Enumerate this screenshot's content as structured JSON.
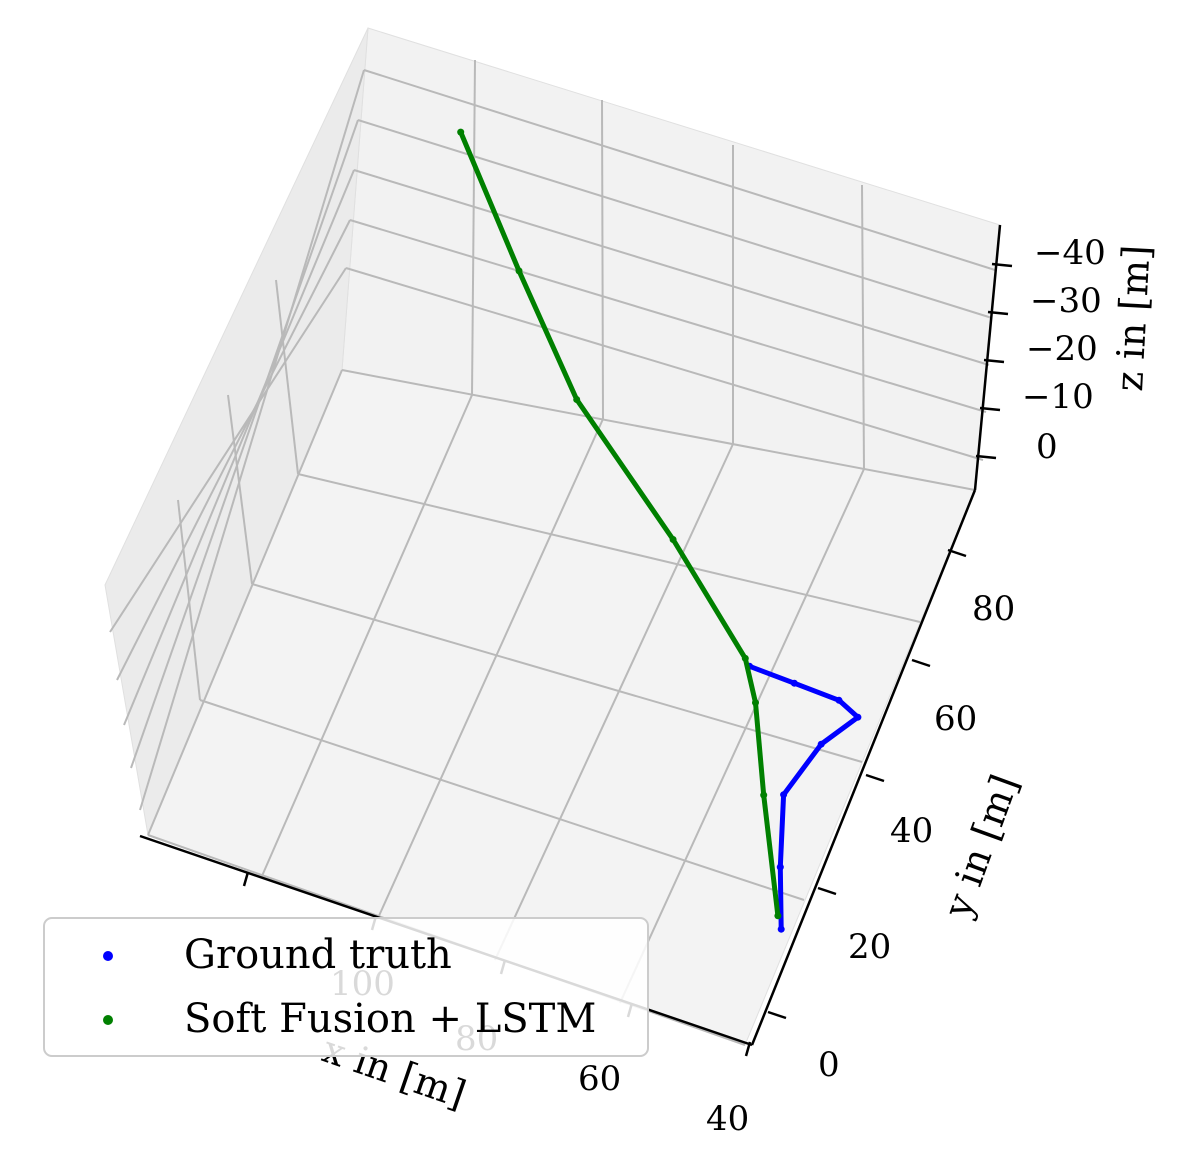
{
  "chart_data": {
    "type": "line3d",
    "series": [
      {
        "name": "Ground truth",
        "color": "#0000ff",
        "marker": "dot",
        "points": [
          {
            "x": 58,
            "y": 62,
            "z": 0
          },
          {
            "x": 52,
            "y": 61,
            "z": 0
          },
          {
            "x": 46,
            "y": 60,
            "z": 0
          },
          {
            "x": 43,
            "y": 58,
            "z": 0
          },
          {
            "x": 46,
            "y": 52,
            "z": 0
          },
          {
            "x": 48,
            "y": 42,
            "z": 0
          },
          {
            "x": 45,
            "y": 30,
            "z": 0
          },
          {
            "x": 42,
            "y": 20,
            "z": 0
          }
        ]
      },
      {
        "name": "Soft Fusion + LSTM",
        "color": "#008000",
        "marker": "dot",
        "points": [
          {
            "x": 43,
            "y": 22,
            "z": 0
          },
          {
            "x": 50,
            "y": 40,
            "z": -1
          },
          {
            "x": 55,
            "y": 54,
            "z": -2
          },
          {
            "x": 58,
            "y": 60,
            "z": -3
          },
          {
            "x": 70,
            "y": 70,
            "z": -10
          },
          {
            "x": 85,
            "y": 80,
            "z": -20
          },
          {
            "x": 95,
            "y": 90,
            "z": -30
          },
          {
            "x": 105,
            "y": 100,
            "z": -42
          }
        ]
      }
    ],
    "xlabel": "x in [m]",
    "ylabel": "y in [m]",
    "zlabel": "z in [m]",
    "x_ticks": [
      "100",
      "80",
      "60",
      "40"
    ],
    "y_ticks": [
      "0",
      "20",
      "40",
      "60",
      "80"
    ],
    "z_ticks": [
      "−40",
      "−30",
      "−20",
      "−10",
      "0"
    ],
    "grid": true,
    "legend_position": "lower-left"
  }
}
